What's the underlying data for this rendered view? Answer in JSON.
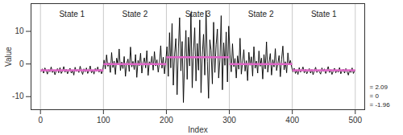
{
  "chart_data": {
    "type": "line",
    "xlabel": "Index",
    "ylabel": "Value",
    "xlim": [
      -15,
      515
    ],
    "xticks": [
      0,
      100,
      200,
      300,
      400,
      500
    ],
    "ylim": [
      -14,
      18.5
    ],
    "yticks": [
      -10,
      0,
      10
    ],
    "grid": true,
    "x": [
      1,
      3,
      5,
      7,
      9,
      11,
      13,
      15,
      17,
      19,
      21,
      23,
      25,
      27,
      29,
      31,
      33,
      35,
      37,
      39,
      41,
      43,
      45,
      47,
      49,
      51,
      53,
      55,
      57,
      59,
      61,
      63,
      65,
      67,
      69,
      71,
      73,
      75,
      77,
      79,
      81,
      83,
      85,
      87,
      89,
      91,
      93,
      95,
      97,
      99,
      101,
      103,
      105,
      107,
      109,
      111,
      113,
      115,
      117,
      119,
      121,
      123,
      125,
      127,
      129,
      131,
      133,
      135,
      137,
      139,
      141,
      143,
      145,
      147,
      149,
      151,
      153,
      155,
      157,
      159,
      161,
      163,
      165,
      167,
      169,
      171,
      173,
      175,
      177,
      179,
      181,
      183,
      185,
      187,
      189,
      191,
      193,
      195,
      197,
      199,
      201,
      203,
      205,
      207,
      209,
      211,
      213,
      215,
      217,
      219,
      221,
      223,
      225,
      227,
      229,
      231,
      233,
      235,
      237,
      239,
      241,
      243,
      245,
      247,
      249,
      251,
      253,
      255,
      257,
      259,
      261,
      263,
      265,
      267,
      269,
      271,
      273,
      275,
      277,
      279,
      281,
      283,
      285,
      287,
      289,
      291,
      293,
      295,
      297,
      299,
      301,
      303,
      305,
      307,
      309,
      311,
      313,
      315,
      317,
      319,
      321,
      323,
      325,
      327,
      329,
      331,
      333,
      335,
      337,
      339,
      341,
      343,
      345,
      347,
      349,
      351,
      353,
      355,
      357,
      359,
      361,
      363,
      365,
      367,
      369,
      371,
      373,
      375,
      377,
      379,
      381,
      383,
      385,
      387,
      389,
      391,
      393,
      395,
      397,
      399,
      401,
      403,
      405,
      407,
      409,
      411,
      413,
      415,
      417,
      419,
      421,
      423,
      425,
      427,
      429,
      431,
      433,
      435,
      437,
      439,
      441,
      443,
      445,
      447,
      449,
      451,
      453,
      455,
      457,
      459,
      461,
      463,
      465,
      467,
      469,
      471,
      473,
      475,
      477,
      479,
      481,
      483,
      485,
      487,
      489,
      491,
      493,
      495,
      497,
      499
    ],
    "series": [
      {
        "name": "Value",
        "color": "#000000",
        "values": [
          -2.3,
          -1.5,
          -2.8,
          -1.2,
          -2.0,
          -3.1,
          -1.7,
          -2.4,
          -0.9,
          -2.6,
          -1.8,
          -3.3,
          -2.1,
          -1.4,
          -2.7,
          -1.1,
          -2.9,
          -2.2,
          -0.8,
          -2.5,
          -1.6,
          -3.0,
          -2.0,
          -1.3,
          -2.8,
          -1.9,
          -3.4,
          -1.0,
          -2.3,
          -1.7,
          -2.6,
          -0.7,
          -2.1,
          -3.2,
          -1.5,
          -2.4,
          -1.2,
          -2.9,
          -2.0,
          -0.6,
          -2.7,
          -1.8,
          -3.1,
          -1.4,
          -2.2,
          -0.9,
          -2.5,
          -1.6,
          -3.0,
          -1.9,
          1.2,
          -1.5,
          2.8,
          -0.7,
          0.4,
          -2.6,
          3.5,
          -1.1,
          0.9,
          -3.2,
          1.8,
          -0.3,
          4.6,
          -2.0,
          0.6,
          -1.4,
          2.3,
          -3.8,
          0.2,
          1.5,
          -2.3,
          5.2,
          -0.9,
          0.8,
          -1.7,
          2.9,
          -4.1,
          1.1,
          -0.5,
          3.3,
          -2.8,
          0.3,
          1.9,
          -1.2,
          4.1,
          -3.5,
          0.7,
          -0.2,
          2.4,
          -1.9,
          3.8,
          -0.6,
          1.3,
          -2.5,
          0.5,
          5.6,
          -1.3,
          2.1,
          -3.0,
          0.9,
          5.3,
          -3.8,
          9.6,
          -1.2,
          12.4,
          -6.5,
          3.1,
          7.8,
          -9.4,
          4.6,
          14.2,
          -2.1,
          6.9,
          -11.8,
          1.5,
          10.3,
          -4.7,
          8.2,
          -0.6,
          15.6,
          -7.3,
          3.8,
          11.1,
          -5.2,
          6.3,
          -1.9,
          13.5,
          -8.8,
          2.7,
          9.1,
          -3.4,
          16.3,
          0.8,
          -10.5,
          7.4,
          4.2,
          -6.1,
          12.8,
          -2.6,
          5.9,
          10.7,
          -4.3,
          1.2,
          14.8,
          -7.9,
          6.5,
          -0.4,
          9.8,
          -5.5,
          11.6,
          3.1,
          -2.4,
          6.2,
          -0.8,
          1.7,
          -4.3,
          2.5,
          -1.6,
          7.9,
          -3.1,
          0.6,
          4.4,
          -2.2,
          1.0,
          -5.1,
          3.6,
          -0.4,
          2.2,
          -3.7,
          5.3,
          -1.3,
          0.9,
          -2.8,
          4.0,
          -0.7,
          1.8,
          -4.6,
          2.9,
          -1.5,
          6.8,
          -2.5,
          0.4,
          3.2,
          -3.4,
          1.3,
          -0.9,
          4.7,
          -2.0,
          0.2,
          2.6,
          -3.9,
          1.5,
          5.5,
          -1.8,
          0.7,
          -2.7,
          3.4,
          -0.3,
          1.1,
          -1.0,
          -2.4,
          -1.3,
          -2.9,
          -1.8,
          -3.2,
          -1.1,
          -2.5,
          -2.0,
          -0.9,
          -2.7,
          -1.6,
          -3.0,
          -2.2,
          -1.4,
          -2.8,
          -1.7,
          -3.3,
          -2.1,
          -1.0,
          -2.6,
          -1.9,
          -2.4,
          -3.1,
          -1.2,
          -2.3,
          -1.5,
          -2.9,
          -2.0,
          -0.8,
          -2.6,
          -1.7,
          -3.2,
          -2.2,
          -1.3,
          -2.7,
          -1.9,
          -2.5,
          -1.1,
          -3.0,
          -2.1,
          -1.6,
          -2.8,
          -1.4,
          -2.3,
          -3.4,
          -1.8,
          -2.6,
          -1.2,
          -2.9,
          -2.0
        ]
      }
    ],
    "segments": [
      {
        "label": "State 1",
        "start": 0,
        "end": 100,
        "mean": -1.96
      },
      {
        "label": "State 2",
        "start": 100,
        "end": 200,
        "mean": 0
      },
      {
        "label": "State 3",
        "start": 200,
        "end": 300,
        "mean": 2.09
      },
      {
        "label": "State 2",
        "start": 300,
        "end": 400,
        "mean": 0
      },
      {
        "label": "State 1",
        "start": 400,
        "end": 500,
        "mean": -1.96
      }
    ],
    "segment_color": "#e066c8",
    "annotations": [
      "= 2.09",
      "= 0",
      "= -1.96"
    ]
  }
}
